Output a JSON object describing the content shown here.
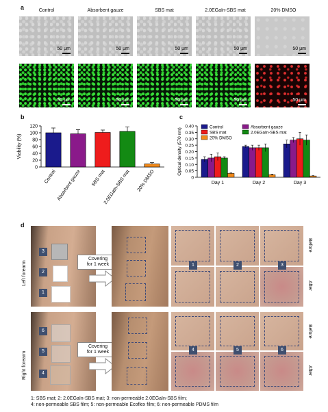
{
  "panels": {
    "a": "a",
    "b": "b",
    "c": "c",
    "d": "d"
  },
  "panel_a": {
    "columns": [
      "Control",
      "Absorbent gauze",
      "SBS mat",
      "2.0EGaIn-SBS mat",
      "20% DMSO"
    ],
    "scale_label": "50 μm"
  },
  "chart_data": [
    {
      "type": "bar",
      "panel": "b",
      "categories": [
        "Control",
        "Absorbent gauze",
        "SBS mat",
        "2.0EGaIn-SBS mat",
        "20% DMSO"
      ],
      "values": [
        100,
        97,
        101,
        104,
        9
      ],
      "errors": [
        14,
        12,
        7,
        13,
        4
      ],
      "colors": [
        "#1a1a8c",
        "#8a1a8a",
        "#ee1c1c",
        "#138a13",
        "#f28a1a"
      ],
      "ylabel": "Viability (%)",
      "ylim": [
        0,
        120
      ],
      "yticks": [
        0,
        20,
        40,
        60,
        80,
        100,
        120
      ]
    },
    {
      "type": "bar",
      "panel": "c",
      "categories": [
        "Day 1",
        "Day 2",
        "Day 3"
      ],
      "series": [
        {
          "name": "Control",
          "color": "#1a1a8c",
          "values": [
            0.14,
            0.24,
            0.26
          ],
          "errors": [
            0.02,
            0.01,
            0.03
          ]
        },
        {
          "name": "Absorbent gauze",
          "color": "#8a1a8a",
          "values": [
            0.15,
            0.23,
            0.29
          ],
          "errors": [
            0.03,
            0.02,
            0.02
          ]
        },
        {
          "name": "SBS mat",
          "color": "#ee1c1c",
          "values": [
            0.16,
            0.23,
            0.3
          ],
          "errors": [
            0.03,
            0.02,
            0.05
          ]
        },
        {
          "name": "2.0EGaIn-SBS mat",
          "color": "#138a13",
          "values": [
            0.15,
            0.23,
            0.29
          ],
          "errors": [
            0.01,
            0.03,
            0.04
          ]
        },
        {
          "name": "20% DMSO",
          "color": "#f28a1a",
          "values": [
            0.03,
            0.02,
            0.01
          ],
          "errors": [
            0.005,
            0.005,
            0.003
          ]
        }
      ],
      "ylabel": "Optical density (570 nm)",
      "ylim": [
        0,
        0.4
      ],
      "yticks": [
        "0",
        "0.05",
        "0.10",
        "0.15",
        "0.20",
        "0.25",
        "0.30",
        "0.35",
        "0.40"
      ],
      "legend": "top"
    }
  ],
  "panel_d": {
    "row_labels": [
      "Left forearm",
      "Right forearm"
    ],
    "arrow_text": [
      "Covering",
      "for 1 week"
    ],
    "before_label": "Before",
    "after_label": "After",
    "top_numbers": [
      "3",
      "2",
      "1"
    ],
    "bottom_numbers": [
      "6",
      "5",
      "4"
    ],
    "grid_top_numbers": [
      "1",
      "2",
      "3"
    ],
    "grid_bottom_numbers": [
      "4",
      "5",
      "6"
    ],
    "legend_line1": "1: SBS mat; 2: 2.0EGaIn-SBS mat; 3: non-permeable 2.0EGaIn-SBS film;",
    "legend_line2": "4: non-permeable SBS film; 5: non-permeable Ecoflex film; 6: non-permeable PDMS film"
  }
}
